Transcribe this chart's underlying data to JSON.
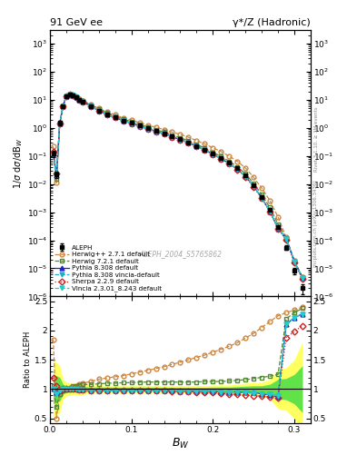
{
  "title_left": "91 GeV ee",
  "title_right": "γ*/Z (Hadronic)",
  "ylabel_main": "1/σ dσ/dB_W",
  "ylabel_ratio": "Ratio to ALEPH",
  "xlabel": "B_W",
  "right_label": "Rivet 3.1.10, ≥ 3M events",
  "right_label2": "mcplots.cern.ch [arXiv:1306.3436]",
  "watermark": "ALEPH_2004_S5765862",
  "ylim_main": [
    1e-06,
    3000
  ],
  "ylim_ratio": [
    0.42,
    2.58
  ],
  "xlim": [
    0.0,
    0.32
  ],
  "aleph_x": [
    0.004,
    0.008,
    0.012,
    0.016,
    0.02,
    0.024,
    0.028,
    0.032,
    0.036,
    0.04,
    0.05,
    0.06,
    0.07,
    0.08,
    0.09,
    0.1,
    0.11,
    0.12,
    0.13,
    0.14,
    0.15,
    0.16,
    0.17,
    0.18,
    0.19,
    0.2,
    0.21,
    0.22,
    0.23,
    0.24,
    0.25,
    0.26,
    0.27,
    0.28,
    0.29,
    0.3,
    0.31
  ],
  "aleph_y": [
    0.12,
    0.022,
    1.5,
    6.0,
    13.5,
    15.5,
    14.0,
    12.0,
    10.0,
    8.5,
    6.0,
    4.2,
    3.1,
    2.4,
    1.85,
    1.5,
    1.2,
    0.95,
    0.78,
    0.63,
    0.5,
    0.4,
    0.31,
    0.23,
    0.17,
    0.12,
    0.085,
    0.057,
    0.036,
    0.02,
    0.009,
    0.0035,
    0.0012,
    0.0003,
    5.5e-05,
    8e-06,
    2e-06
  ],
  "aleph_err": [
    0.03,
    0.005,
    0.3,
    0.5,
    0.8,
    0.8,
    0.7,
    0.6,
    0.5,
    0.4,
    0.2,
    0.15,
    0.1,
    0.08,
    0.06,
    0.05,
    0.04,
    0.03,
    0.025,
    0.02,
    0.015,
    0.012,
    0.009,
    0.007,
    0.005,
    0.004,
    0.003,
    0.002,
    0.0015,
    0.001,
    0.0005,
    0.0002,
    0.0001,
    5e-05,
    1e-05,
    2e-06,
    8e-07
  ],
  "herwig_pp_ratio": [
    1.85,
    0.5,
    0.92,
    0.97,
    0.99,
    1.01,
    1.03,
    1.06,
    1.08,
    1.1,
    1.13,
    1.17,
    1.19,
    1.21,
    1.23,
    1.26,
    1.29,
    1.32,
    1.35,
    1.38,
    1.42,
    1.46,
    1.5,
    1.54,
    1.58,
    1.63,
    1.68,
    1.73,
    1.79,
    1.87,
    1.95,
    2.05,
    2.15,
    2.25,
    2.3,
    2.35,
    2.4
  ],
  "herwig7_ratio": [
    1.05,
    0.7,
    0.92,
    0.98,
    1.01,
    1.03,
    1.05,
    1.06,
    1.07,
    1.08,
    1.08,
    1.09,
    1.1,
    1.1,
    1.11,
    1.11,
    1.12,
    1.12,
    1.12,
    1.12,
    1.12,
    1.12,
    1.12,
    1.12,
    1.13,
    1.13,
    1.13,
    1.14,
    1.15,
    1.16,
    1.18,
    1.2,
    1.22,
    1.25,
    2.2,
    2.3,
    2.38
  ],
  "pythia8_ratio": [
    1.0,
    0.95,
    0.97,
    1.0,
    1.0,
    1.0,
    1.0,
    1.0,
    0.99,
    0.99,
    0.98,
    0.97,
    0.97,
    0.97,
    0.97,
    0.97,
    0.97,
    0.97,
    0.97,
    0.97,
    0.97,
    0.96,
    0.96,
    0.96,
    0.96,
    0.96,
    0.95,
    0.95,
    0.95,
    0.94,
    0.94,
    0.92,
    0.9,
    0.87,
    2.1,
    2.22,
    2.28
  ],
  "pythia8v_ratio": [
    1.0,
    0.93,
    0.97,
    1.0,
    1.0,
    1.0,
    1.0,
    1.0,
    0.99,
    0.99,
    0.98,
    0.97,
    0.97,
    0.97,
    0.97,
    0.97,
    0.97,
    0.97,
    0.97,
    0.97,
    0.97,
    0.96,
    0.96,
    0.96,
    0.96,
    0.96,
    0.95,
    0.95,
    0.95,
    0.94,
    0.93,
    0.92,
    0.91,
    0.88,
    2.1,
    2.22,
    2.28
  ],
  "sherpa_ratio": [
    1.2,
    1.05,
    0.97,
    1.0,
    1.01,
    1.0,
    1.0,
    1.0,
    0.99,
    0.99,
    0.98,
    0.97,
    0.97,
    0.97,
    0.97,
    0.97,
    0.97,
    0.97,
    0.97,
    0.97,
    0.96,
    0.96,
    0.96,
    0.95,
    0.95,
    0.94,
    0.93,
    0.92,
    0.91,
    0.9,
    0.89,
    0.88,
    0.87,
    0.85,
    1.88,
    1.98,
    2.08
  ],
  "vincia_ratio": [
    1.0,
    0.92,
    0.97,
    1.0,
    1.0,
    1.0,
    1.0,
    1.0,
    0.99,
    0.99,
    0.98,
    0.97,
    0.97,
    0.97,
    0.97,
    0.97,
    0.97,
    0.97,
    0.97,
    0.97,
    0.97,
    0.96,
    0.96,
    0.96,
    0.96,
    0.96,
    0.95,
    0.95,
    0.95,
    0.94,
    0.93,
    0.92,
    0.91,
    0.88,
    2.1,
    2.22,
    2.28
  ],
  "colors": {
    "herwig_pp": "#cc8844",
    "herwig7": "#558833",
    "pythia8": "#2222cc",
    "pythia8v": "#22aacc",
    "sherpa": "#cc2222",
    "vincia": "#22cccc"
  },
  "labels": {
    "aleph": "ALEPH",
    "herwig_pp": "Herwig++ 2.7.1 default",
    "herwig7": "Herwig 7.2.1 default",
    "pythia8": "Pythia 8.308 default",
    "pythia8v": "Pythia 8.308 vincia-default",
    "sherpa": "Sherpa 2.2.9 default",
    "vincia": "Vincia 2.3.01_8.243 default"
  }
}
